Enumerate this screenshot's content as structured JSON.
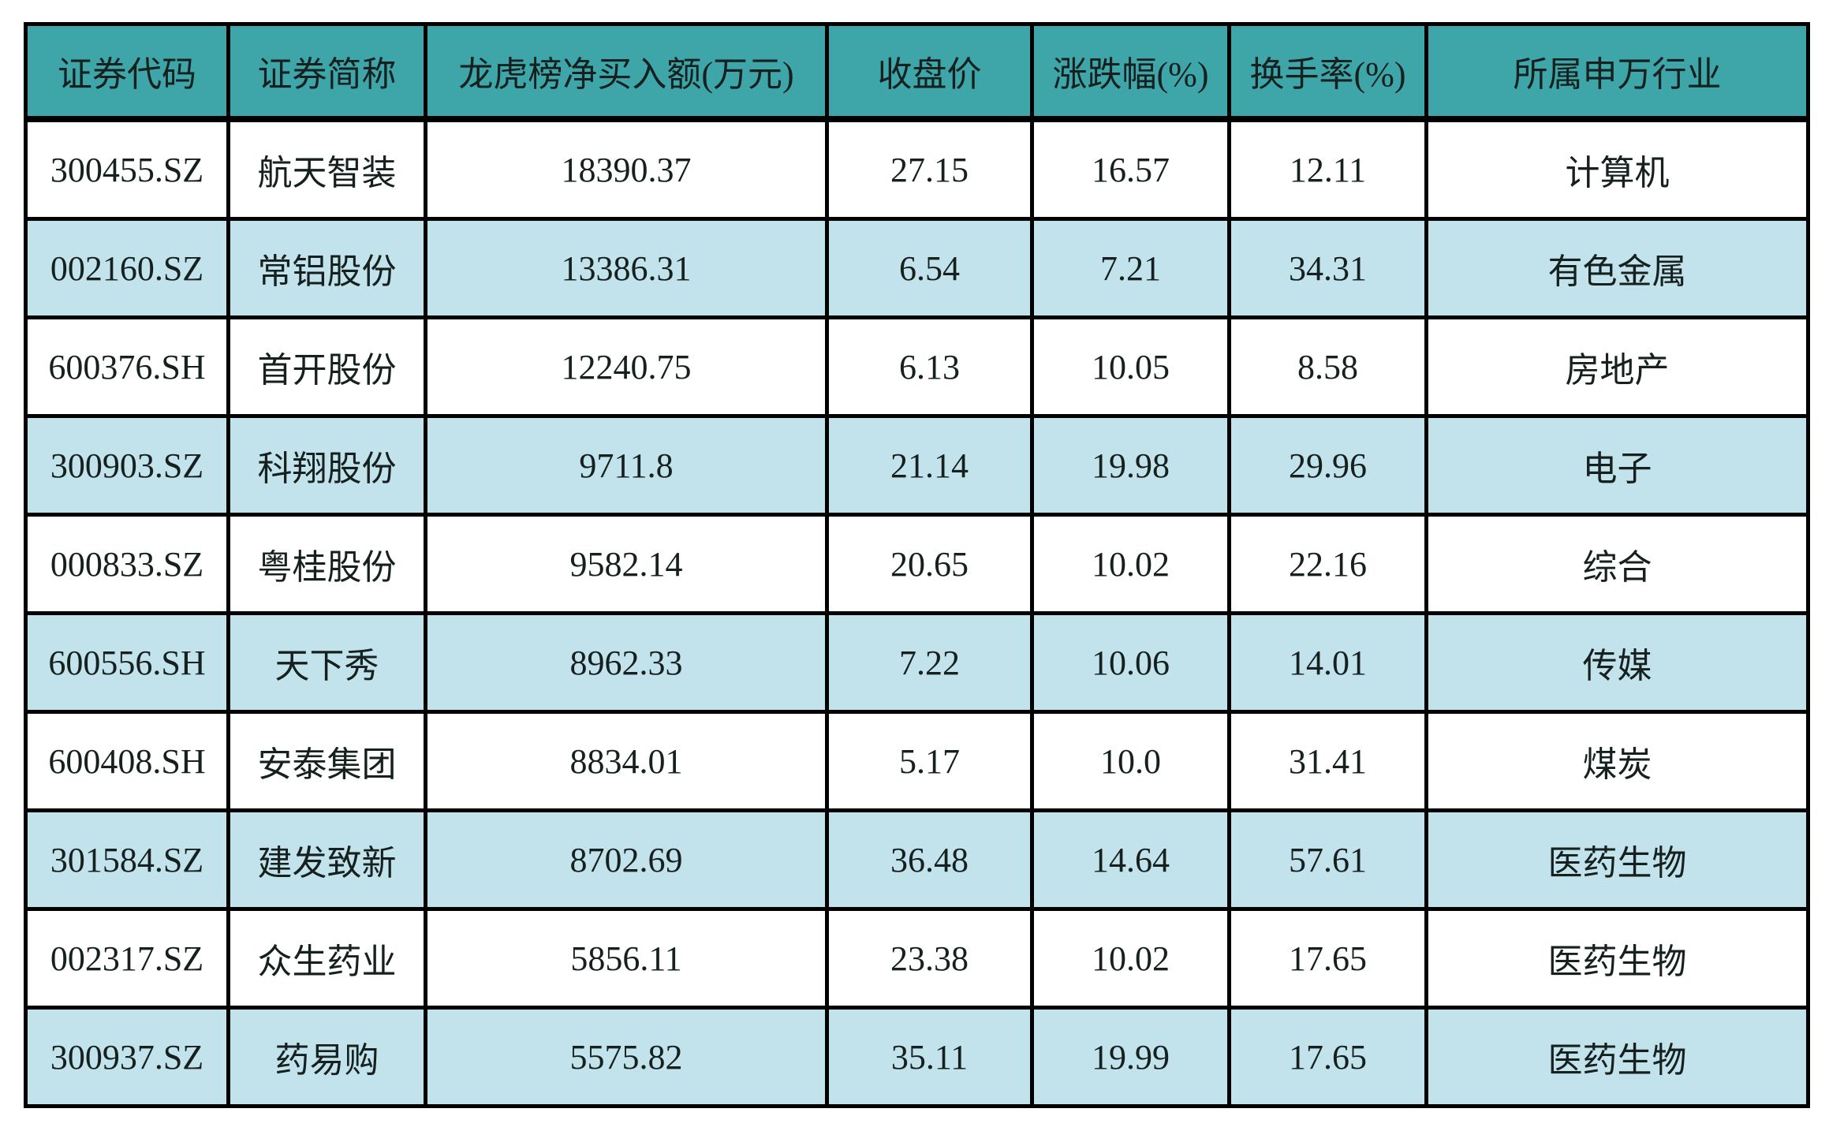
{
  "chart_data": {
    "type": "table",
    "title": "",
    "columns": [
      "证券代码",
      "证券简称",
      "龙虎榜净买入额(万元)",
      "收盘价",
      "涨跌幅(%)",
      "换手率(%)",
      "所属申万行业"
    ],
    "rows": [
      [
        "300455.SZ",
        "航天智装",
        "18390.37",
        "27.15",
        "16.57",
        "12.11",
        "计算机"
      ],
      [
        "002160.SZ",
        "常铝股份",
        "13386.31",
        "6.54",
        "7.21",
        "34.31",
        "有色金属"
      ],
      [
        "600376.SH",
        "首开股份",
        "12240.75",
        "6.13",
        "10.05",
        "8.58",
        "房地产"
      ],
      [
        "300903.SZ",
        "科翔股份",
        "9711.8",
        "21.14",
        "19.98",
        "29.96",
        "电子"
      ],
      [
        "000833.SZ",
        "粤桂股份",
        "9582.14",
        "20.65",
        "10.02",
        "22.16",
        "综合"
      ],
      [
        "600556.SH",
        "天下秀",
        "8962.33",
        "7.22",
        "10.06",
        "14.01",
        "传媒"
      ],
      [
        "600408.SH",
        "安泰集团",
        "8834.01",
        "5.17",
        "10.0",
        "31.41",
        "煤炭"
      ],
      [
        "301584.SZ",
        "建发致新",
        "8702.69",
        "36.48",
        "14.64",
        "57.61",
        "医药生物"
      ],
      [
        "002317.SZ",
        "众生药业",
        "5856.11",
        "23.38",
        "10.02",
        "17.65",
        "医药生物"
      ],
      [
        "300937.SZ",
        "药易购",
        "5575.82",
        "35.11",
        "19.99",
        "17.65",
        "医药生物"
      ]
    ],
    "layout_hints": {
      "grid": true,
      "zebra_striping": "even rows light blue, odd rows white",
      "alignment": "center"
    },
    "colors": {
      "header_bg": "#3EA5A8",
      "row_bg_odd": "#FFFFFF",
      "row_bg_even": "#C2E3EB",
      "border": "#000000",
      "text": "#15201F"
    }
  }
}
